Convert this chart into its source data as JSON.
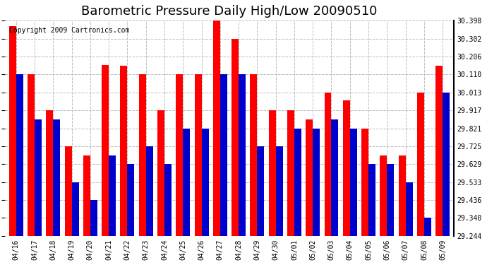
{
  "title": "Barometric Pressure Daily High/Low 20090510",
  "copyright": "Copyright 2009 Cartronics.com",
  "ylabel_right_ticks": [
    29.244,
    29.34,
    29.436,
    29.533,
    29.629,
    29.725,
    29.821,
    29.917,
    30.013,
    30.11,
    30.206,
    30.302,
    30.398
  ],
  "ylim": [
    29.244,
    30.398
  ],
  "categories": [
    "04/16",
    "04/17",
    "04/18",
    "04/19",
    "04/20",
    "04/21",
    "04/22",
    "04/23",
    "04/24",
    "04/25",
    "04/26",
    "04/27",
    "04/28",
    "04/29",
    "04/30",
    "05/01",
    "05/02",
    "05/03",
    "05/04",
    "05/05",
    "05/06",
    "05/07",
    "05/08",
    "05/09"
  ],
  "high_values": [
    30.37,
    30.11,
    29.917,
    29.725,
    29.677,
    30.16,
    30.156,
    30.11,
    29.917,
    30.11,
    30.11,
    30.398,
    30.302,
    30.11,
    29.917,
    29.917,
    29.87,
    30.013,
    29.97,
    29.821,
    29.677,
    29.677,
    30.013,
    30.156
  ],
  "low_values": [
    30.11,
    29.87,
    29.87,
    29.533,
    29.436,
    29.677,
    29.629,
    29.725,
    29.629,
    29.821,
    29.821,
    30.11,
    30.11,
    29.725,
    29.725,
    29.821,
    29.821,
    29.87,
    29.821,
    29.629,
    29.629,
    29.533,
    29.34,
    30.013
  ],
  "high_color": "#ff0000",
  "low_color": "#0000cc",
  "bg_color": "#ffffff",
  "grid_color": "#bbbbbb",
  "bar_width": 0.38,
  "title_fontsize": 13,
  "copyright_fontsize": 7
}
